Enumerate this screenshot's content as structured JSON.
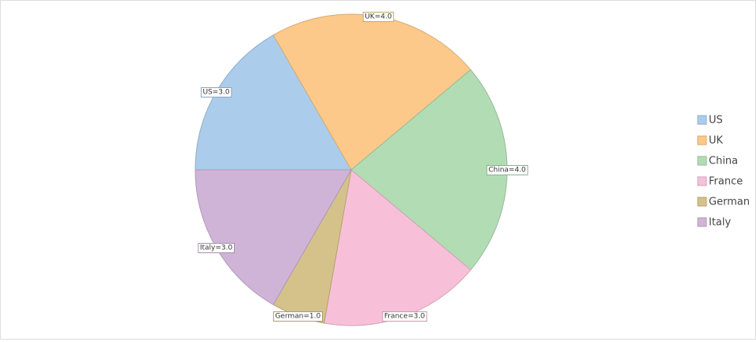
{
  "chart_data": {
    "type": "pie",
    "categories": [
      "US",
      "UK",
      "China",
      "France",
      "German",
      "Italy"
    ],
    "values": [
      3,
      4,
      4,
      3,
      1,
      3
    ],
    "value_labels": [
      "US=3.0",
      "UK=4.0",
      "China=4.0",
      "France=3.0",
      "German=1.0",
      "Italy=3.0"
    ],
    "colors": [
      "#abcdeb",
      "#fcc98a",
      "#b2dcb3",
      "#f7c0d8",
      "#d5c28a",
      "#cfb4d7"
    ],
    "legend": "right"
  }
}
